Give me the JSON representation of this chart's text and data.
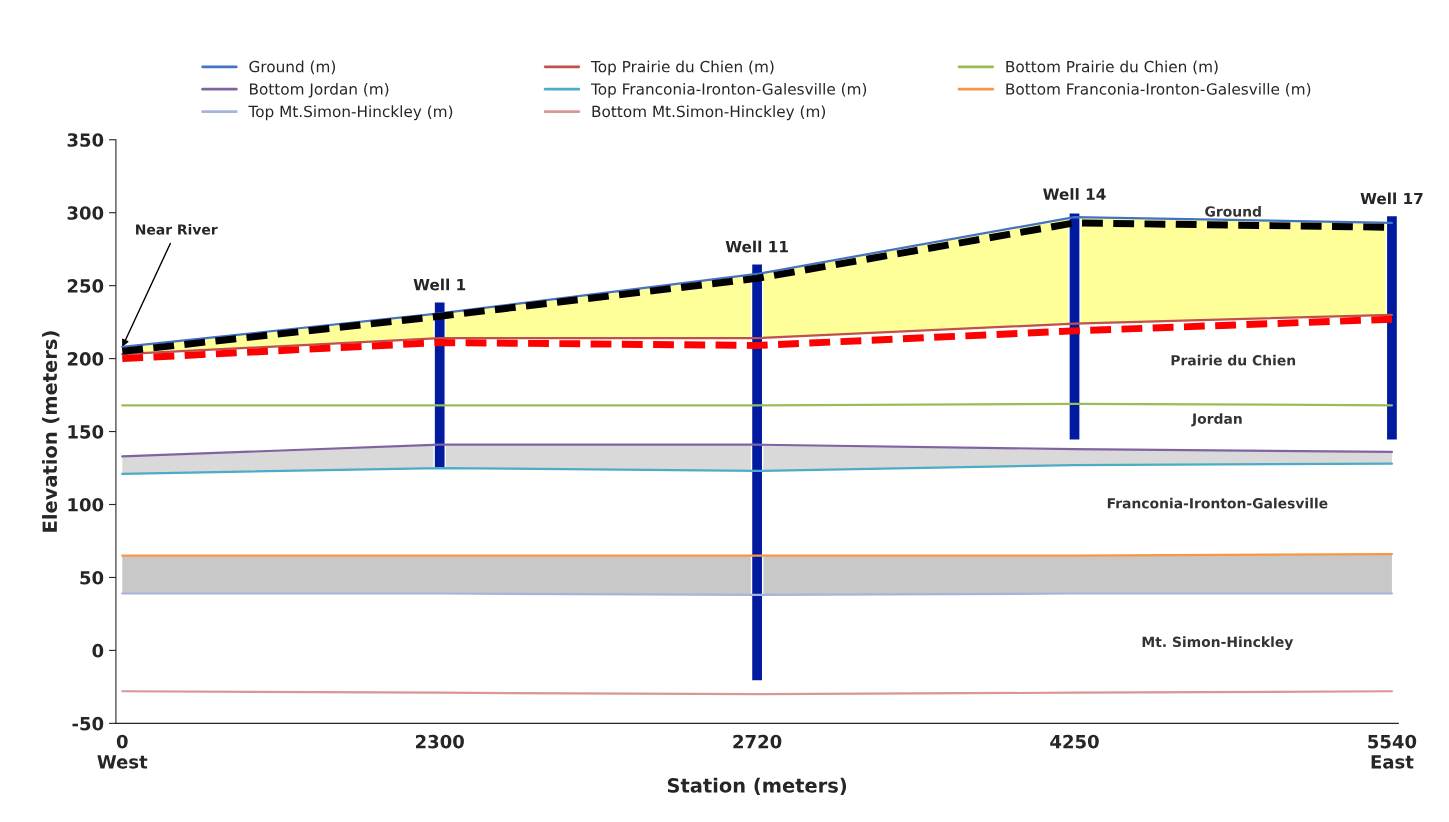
{
  "chart_data": {
    "type": "line",
    "xlabel": "Station (meters)",
    "ylabel": "Elevation (meters)",
    "categories": [
      "0\nWest",
      "2300",
      "2720",
      "4250",
      "5540\nEast"
    ],
    "ylim": [
      -50,
      350
    ],
    "yticks": [
      -50,
      0,
      50,
      100,
      150,
      200,
      250,
      300,
      350
    ],
    "grid": false,
    "legend": "top",
    "marker": "none",
    "series": [
      {
        "name": "Ground (m)",
        "color": "#4472c4",
        "values": [
          208,
          231,
          258,
          297,
          293
        ],
        "lower": [
          203,
          214,
          214,
          224,
          230
        ],
        "upper": [
          208,
          231,
          258,
          297,
          293
        ]
      },
      {
        "name": "Top Prairie du Chien (m)",
        "color": "#c0504d",
        "values": [
          203,
          214,
          214,
          224,
          230
        ]
      },
      {
        "name": "Bottom Prairie du Chien (m)",
        "color": "#9bbb59",
        "values": [
          168,
          168,
          168,
          169,
          168
        ]
      },
      {
        "name": "Bottom Jordan (m)",
        "color": "#8064a2",
        "values": [
          133,
          141,
          141,
          138,
          136
        ],
        "lower": [
          121,
          125,
          123,
          127,
          128
        ],
        "upper": [
          133,
          141,
          141,
          138,
          136
        ]
      },
      {
        "name": "Top Franconia-Ironton-Galesville (m)",
        "color": "#4bacc6",
        "values": [
          121,
          125,
          123,
          127,
          128
        ]
      },
      {
        "name": "Bottom Franconia-Ironton-Galesville (m)",
        "color": "#f79646",
        "values": [
          65,
          65,
          65,
          65,
          66
        ],
        "lower": [
          39,
          39,
          38,
          39,
          39
        ],
        "upper": [
          65,
          65,
          65,
          65,
          66
        ]
      },
      {
        "name": "Top Mt.Simon-Hinckley (m)",
        "color": "#a5b5d9",
        "values": [
          39,
          39,
          38,
          39,
          39
        ]
      },
      {
        "name": "Bottom Mt.Simon-Hinckley (m)",
        "color": "#d99694",
        "values": [
          -28,
          -29,
          -30,
          -29,
          -28
        ]
      },
      {
        "type": "line",
        "color": "#000000",
        "line_style": "dashed",
        "values": [
          205,
          229,
          255,
          293,
          290
        ]
      },
      {
        "type": "line",
        "color": "#ff0000",
        "line_style": "dashed",
        "values": [
          200,
          211,
          209,
          219,
          227
        ]
      },
      {
        "type": "bar",
        "color": "#001aa0",
        "values": [
          null,
          114,
          286,
          156,
          154
        ],
        "base": [
          null,
          125,
          -21,
          144,
          144
        ]
      }
    ],
    "annotations": [
      {
        "text": "Near River",
        "x": "0\nWest",
        "y": 208
      },
      {
        "text": "Well 1",
        "x": "2300",
        "y": 239
      },
      {
        "text": "Well 11",
        "x": "2720",
        "y": 265
      },
      {
        "text": "Well 14",
        "x": "4250",
        "y": 301
      },
      {
        "text": "Well 17",
        "x": "5540\nEast",
        "y": 298
      },
      "Ground",
      "Prairie du Chien",
      "Jordan",
      "Franconia-Ironton-Galesville",
      "Mt. Simon-Hinckley"
    ]
  }
}
